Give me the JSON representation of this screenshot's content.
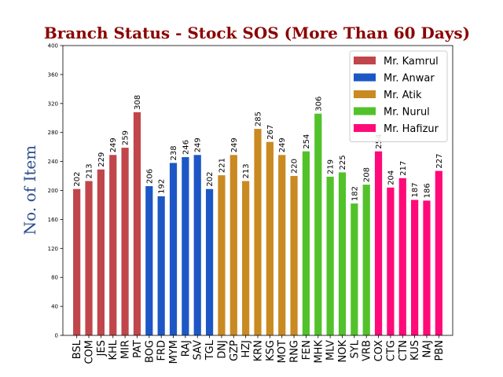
{
  "chart_data": {
    "type": "bar",
    "title": "Branch Status - Stock SOS (More Than 60 Days)",
    "title_color": "#8b0000",
    "xlabel": "",
    "ylabel": "No. of Item",
    "ylabel_color": "#2c4f8c",
    "ylim": [
      0,
      400
    ],
    "yticks": [
      0,
      40,
      80,
      120,
      160,
      200,
      240,
      280,
      320,
      360,
      400
    ],
    "grid": false,
    "legend_placement": "top-right",
    "series": [
      {
        "name": "Mr. Kamrul",
        "color": "#c0464b",
        "categories": [
          "BSL",
          "COM",
          "JES",
          "KHL",
          "MIR",
          "PAT"
        ],
        "values": [
          202,
          213,
          229,
          249,
          259,
          308
        ]
      },
      {
        "name": "Mr. Anwar",
        "color": "#1d57c6",
        "categories": [
          "BOG",
          "FRD",
          "MYM",
          "RAJ",
          "SAV",
          "TGL"
        ],
        "values": [
          206,
          192,
          238,
          246,
          249,
          202
        ]
      },
      {
        "name": "Mr. Atik",
        "color": "#c98a22",
        "categories": [
          "DNJ",
          "GZP",
          "HZJ",
          "KRN",
          "KSG",
          "MOT",
          "RNG"
        ],
        "values": [
          221,
          249,
          213,
          285,
          267,
          249,
          220
        ]
      },
      {
        "name": "Mr. Nurul",
        "color": "#52c22a",
        "categories": [
          "FEN",
          "MHK",
          "MLV",
          "NOK",
          "SYL",
          "VRB"
        ],
        "values": [
          254,
          306,
          219,
          225,
          182,
          208
        ]
      },
      {
        "name": "Mr. Hafizur",
        "color": "#ff0a78",
        "categories": [
          "COX",
          "CTG",
          "CTN",
          "KUS",
          "NAJ",
          "PBN"
        ],
        "values": [
          254,
          204,
          217,
          187,
          186,
          227
        ]
      }
    ]
  }
}
